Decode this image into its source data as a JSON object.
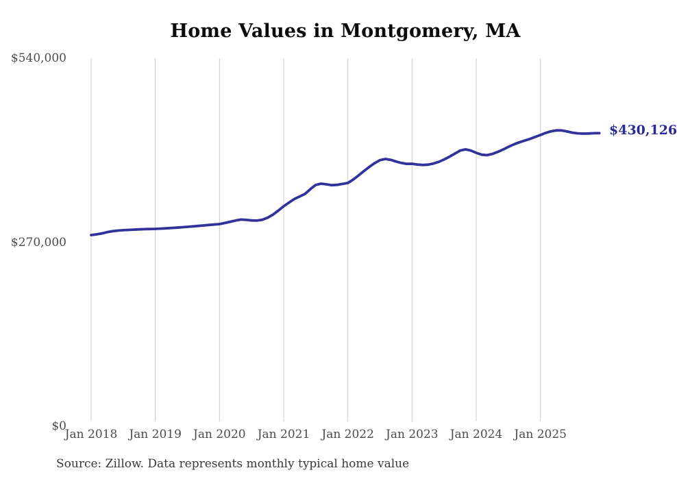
{
  "title": "Home Values in Montgomery, MA",
  "end_label": "$430,126",
  "source_note": "Source: Zillow. Data represents monthly typical home value",
  "colors": {
    "line": "#32329b",
    "end_label": "#2a2a99",
    "grid": "#cccccc",
    "axis_text": "#4b4b4b",
    "title_text": "#0a0a0a",
    "background": "#ffffff"
  },
  "chart_data": {
    "type": "line",
    "title": "Home Values in Montgomery, MA",
    "xlabel": "",
    "ylabel": "",
    "unit": "USD",
    "frequency": "monthly",
    "start_month": "2018-01",
    "end_month": "2025-12",
    "latest_value": 430126,
    "latest_value_label": "$430,126",
    "ylim": [
      0,
      540000
    ],
    "grid": "vertical-only",
    "legend": "none",
    "y_ticks": [
      {
        "label": "$540,000",
        "value": 540000
      },
      {
        "label": "$270,000",
        "value": 270000
      },
      {
        "label": "$0",
        "value": 0
      }
    ],
    "x_ticks": [
      {
        "label": "Jan 2018",
        "month_index": 0
      },
      {
        "label": "Jan 2019",
        "month_index": 12
      },
      {
        "label": "Jan 2020",
        "month_index": 24
      },
      {
        "label": "Jan 2021",
        "month_index": 36
      },
      {
        "label": "Jan 2022",
        "month_index": 48
      },
      {
        "label": "Jan 2023",
        "month_index": 60
      },
      {
        "label": "Jan 2024",
        "month_index": 72
      },
      {
        "label": "Jan 2025",
        "month_index": 84
      }
    ],
    "values": [
      280600,
      281600,
      283000,
      284800,
      286200,
      287100,
      287700,
      288100,
      288500,
      288900,
      289200,
      289400,
      289600,
      290000,
      290400,
      290900,
      291400,
      292000,
      292600,
      293200,
      293900,
      294600,
      295300,
      296000,
      296600,
      298300,
      300100,
      301900,
      303300,
      302800,
      302000,
      301800,
      303000,
      306000,
      310500,
      316500,
      322800,
      328200,
      333500,
      337200,
      341000,
      348000,
      354200,
      356000,
      355000,
      353800,
      354300,
      355600,
      357000,
      362000,
      368000,
      374500,
      380500,
      386000,
      390500,
      392200,
      391000,
      388500,
      386300,
      385000,
      385100,
      384000,
      383400,
      383800,
      385500,
      388000,
      391500,
      395500,
      400000,
      404500,
      406300,
      404500,
      401200,
      398500,
      397800,
      399500,
      402500,
      406000,
      410000,
      413500,
      416500,
      419000,
      421500,
      424500,
      427400,
      430500,
      432800,
      434200,
      434000,
      432500,
      430800,
      429800,
      429400,
      429600,
      430000,
      430126
    ]
  }
}
